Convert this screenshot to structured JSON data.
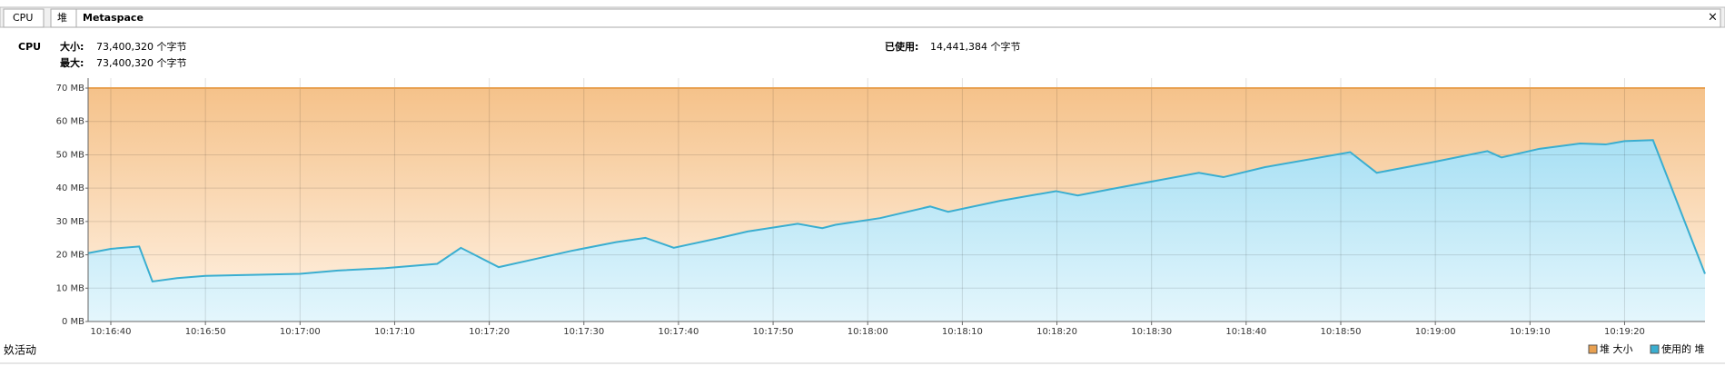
{
  "tabs": [
    "CPU",
    "堆",
    "Metaspace"
  ],
  "close": "×",
  "side_label": "CPU",
  "info": {
    "size_label": "大小:",
    "size_value": "73,400,320 个字节",
    "max_label": "最大:",
    "max_value": "73,400,320 个字节",
    "used_label": "已使用:",
    "used_value": "14,441,384 个字节"
  },
  "footer_left": "奺活动",
  "chart_data": {
    "type": "area",
    "x": [
      36997.6,
      37000,
      37003,
      37004.4,
      37007,
      37010,
      37015,
      37020,
      37024,
      37029,
      37034.5,
      37037,
      37041,
      37044,
      37048.7,
      37053.4,
      37056.5,
      37059.5,
      37064.4,
      37067.3,
      37072.6,
      37075.2,
      37076.6,
      37081.3,
      37086.6,
      37088.5,
      37094,
      37099.9,
      37102.2,
      37105.7,
      37115,
      37117.6,
      37122,
      37131,
      37133.8,
      37139.4,
      37145.5,
      37147,
      37151,
      37155.3,
      37158,
      37160,
      37163,
      37168.5
    ],
    "series": [
      {
        "name": "堆 大小",
        "color": "#e8a050",
        "values": [
          70,
          70,
          70,
          70,
          70,
          70,
          70,
          70,
          70,
          70,
          70,
          70,
          70,
          70,
          70,
          70,
          70,
          70,
          70,
          70,
          70,
          70,
          70,
          70,
          70,
          70,
          70,
          70,
          70,
          70,
          70,
          70,
          70,
          70,
          70,
          70,
          70,
          70,
          70,
          70,
          70,
          70,
          70,
          70
        ]
      },
      {
        "name": "使用的 堆",
        "color": "#3aaed0",
        "values": [
          20.5,
          21.8,
          22.5,
          12,
          13,
          13.7,
          14,
          14.3,
          15.3,
          16,
          17.3,
          22.1,
          16.3,
          18.2,
          21.2,
          23.8,
          25.1,
          22.1,
          25.1,
          27,
          29.3,
          28,
          29,
          31,
          34.5,
          32.9,
          36.2,
          39.1,
          37.8,
          39.7,
          44.6,
          43.3,
          46.3,
          50.8,
          44.6,
          47.6,
          51.1,
          49.2,
          51.8,
          53.4,
          53.1,
          54.1,
          54.4,
          14.3
        ]
      }
    ],
    "xlim": [
      36997.6,
      37168.5
    ],
    "xticks": [
      {
        "value": 37000,
        "label": "10:16:40"
      },
      {
        "value": 37010,
        "label": "10:16:50"
      },
      {
        "value": 37020,
        "label": "10:17:00"
      },
      {
        "value": 37030,
        "label": "10:17:10"
      },
      {
        "value": 37040,
        "label": "10:17:20"
      },
      {
        "value": 37050,
        "label": "10:17:30"
      },
      {
        "value": 37060,
        "label": "10:17:40"
      },
      {
        "value": 37070,
        "label": "10:17:50"
      },
      {
        "value": 37080,
        "label": "10:18:00"
      },
      {
        "value": 37090,
        "label": "10:18:10"
      },
      {
        "value": 37100,
        "label": "10:18:20"
      },
      {
        "value": 37110,
        "label": "10:18:30"
      },
      {
        "value": 37120,
        "label": "10:18:40"
      },
      {
        "value": 37130,
        "label": "10:18:50"
      },
      {
        "value": 37140,
        "label": "10:19:00"
      },
      {
        "value": 37150,
        "label": "10:19:10"
      },
      {
        "value": 37160,
        "label": "10:19:20"
      }
    ],
    "ylim": [
      0,
      73
    ],
    "yticks": [
      {
        "value": 0,
        "label": "0 MB"
      },
      {
        "value": 10,
        "label": "10 MB"
      },
      {
        "value": 20,
        "label": "20 MB"
      },
      {
        "value": 30,
        "label": "30 MB"
      },
      {
        "value": 40,
        "label": "40 MB"
      },
      {
        "value": 50,
        "label": "50 MB"
      },
      {
        "value": 60,
        "label": "60 MB"
      },
      {
        "value": 70,
        "label": "70 MB"
      }
    ],
    "grid": true
  }
}
